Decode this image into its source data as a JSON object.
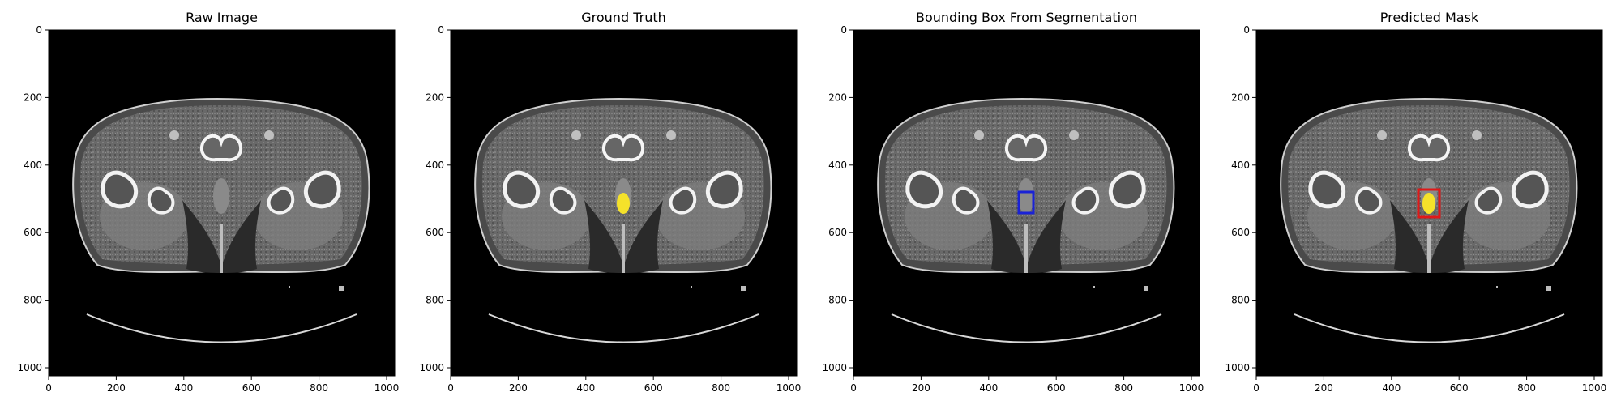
{
  "figure": {
    "panels": [
      {
        "title": "Raw Image"
      },
      {
        "title": "Ground Truth"
      },
      {
        "title": "Bounding Box From Segmentation"
      },
      {
        "title": "Predicted Mask"
      }
    ],
    "axis_ticks": {
      "x": [
        "0",
        "200",
        "400",
        "600",
        "800",
        "1000"
      ],
      "y": [
        "0",
        "200",
        "400",
        "600",
        "800",
        "1000"
      ]
    },
    "image_extent": [
      0,
      1024
    ],
    "overlay": {
      "mask_color": "#f5e22a",
      "segmentation_box_color": "#1a22d6",
      "predicted_box_color": "#e01818"
    }
  }
}
